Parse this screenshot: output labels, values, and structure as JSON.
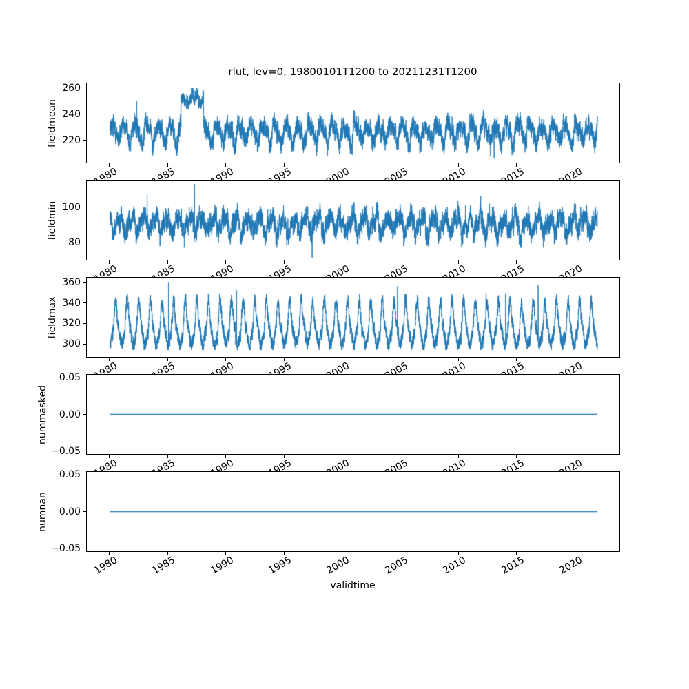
{
  "figure": {
    "title": "rlut, lev=0, 19800101T1200 to 20211231T1200",
    "background_color": "#ffffff",
    "line_color": "#1f77b4",
    "axis_color": "#000000"
  },
  "x_axis": {
    "label": "validtime",
    "tick_labels": [
      "1980",
      "1985",
      "1990",
      "1995",
      "2000",
      "2005",
      "2010",
      "2015",
      "2020"
    ],
    "tick_values": [
      1980,
      1985,
      1990,
      1995,
      2000,
      2005,
      2010,
      2015,
      2020
    ],
    "xlim": [
      1978,
      2023.9
    ],
    "tick_rotation_deg": 30
  },
  "chart_data": [
    {
      "type": "line",
      "name": "fieldmean",
      "ylabel": "fieldmean",
      "ytick_labels": [
        "220",
        "240",
        "260"
      ],
      "ytick_values": [
        220,
        240,
        260
      ],
      "ylim": [
        202.5,
        264
      ],
      "x_start": 1980.0,
      "x_end": 2022.0,
      "summary": "noisy sub-weekly series oscillating ~208-246 around mean 226 with annual cycle; elevated plateau 244-260 from ~1986.1 to ~1988.1; brief spike to ~250 near 1982.3; dip to ~206 near 2013",
      "synthesis": {
        "seed": 7,
        "n": 6000,
        "base": 226,
        "seasonal": [
          [
            1,
            6.5,
            0.3
          ],
          [
            2,
            2.5,
            1.2
          ]
        ],
        "ar_rho": 0.8,
        "ar_amp": 3.0,
        "white": 5.5,
        "clip": [
          206.5,
          248.5
        ],
        "segments": [
          {
            "from": 1986.12,
            "to": 1988.06,
            "base": 252.5,
            "seasonal_scale": 0.45,
            "white": 3.4,
            "clip": [
              244.5,
              260.5
            ]
          }
        ],
        "spikes": [
          [
            1982.3,
            250.2
          ],
          [
            2013.1,
            205.8
          ]
        ]
      }
    },
    {
      "type": "line",
      "name": "fieldmin",
      "ylabel": "fieldmin",
      "ytick_labels": [
        "80",
        "100"
      ],
      "ytick_values": [
        80,
        100
      ],
      "ylim": [
        70,
        115.5
      ],
      "x_start": 1980.0,
      "x_end": 2022.0,
      "summary": "noisy series oscillating ~78-105 around mean 90 with annual cycle; tallest spike ~113 near 1987.3; spike ~108 near 1983.2; deep dip to ~71 near 1997.4",
      "synthesis": {
        "seed": 21,
        "n": 6000,
        "base": 90.5,
        "seasonal": [
          [
            1,
            4.2,
            2.2
          ],
          [
            2,
            2.0,
            0.7
          ]
        ],
        "ar_rho": 0.78,
        "ar_amp": 2.6,
        "white": 4.2,
        "clip": [
          77,
          106.5
        ],
        "segments": [],
        "spikes": [
          [
            1983.2,
            107.5
          ],
          [
            1987.28,
            113.5
          ],
          [
            1997.42,
            71.2
          ]
        ]
      }
    },
    {
      "type": "line",
      "name": "fieldmax",
      "ylabel": "fieldmax",
      "ytick_labels": [
        "300",
        "320",
        "340",
        "360"
      ],
      "ytick_values": [
        300,
        320,
        340,
        360
      ],
      "ylim": [
        286.5,
        365.5
      ],
      "x_start": 1980.0,
      "x_end": 2022.0,
      "summary": "strong annual sawtooth: yearly sharp peaks ~335-347, base band ~305-325, troughs ~294-300; extreme spikes ~360 near 1985, ~353 near 1991, ~357 near 2004.8, ~350 near 2012 and 2014, ~358 near 2017",
      "synthesis": {
        "seed": 33,
        "n": 6000,
        "base": 312,
        "seasonal": [
          [
            1,
            6,
            4.2
          ]
        ],
        "peak": {
          "amp": 26,
          "power": 2.4,
          "phase": 0.22
        },
        "dip": {
          "amp": 9,
          "power": 2.0,
          "phase": 0.72
        },
        "ar_rho": 0.75,
        "ar_amp": 3.0,
        "white": 5.0,
        "clip": [
          293.5,
          349.5
        ],
        "segments": [],
        "spikes": [
          [
            1985.05,
            360.5
          ],
          [
            1990.9,
            353
          ],
          [
            2004.78,
            357
          ],
          [
            2012.4,
            350
          ],
          [
            2014.1,
            350
          ],
          [
            2016.9,
            358
          ]
        ]
      }
    },
    {
      "type": "line",
      "name": "nummasked",
      "ylabel": "nummasked",
      "ytick_labels": [
        "−0.05",
        "0.00",
        "0.05"
      ],
      "ytick_values": [
        -0.05,
        0.0,
        0.05
      ],
      "ylim": [
        -0.055,
        0.055
      ],
      "x_start": 1980.0,
      "x_end": 2022.0,
      "summary": "constant zero line from 1980 to 2022",
      "synthesis": {
        "constant": 0,
        "lw": 1.6
      }
    },
    {
      "type": "line",
      "name": "numnan",
      "ylabel": "numnan",
      "ytick_labels": [
        "−0.05",
        "0.00",
        "0.05"
      ],
      "ytick_values": [
        -0.05,
        0.0,
        0.05
      ],
      "ylim": [
        -0.055,
        0.055
      ],
      "x_start": 1980.0,
      "x_end": 2022.0,
      "summary": "constant zero line from 1980 to 2022",
      "synthesis": {
        "constant": 0,
        "lw": 1.6
      }
    }
  ]
}
